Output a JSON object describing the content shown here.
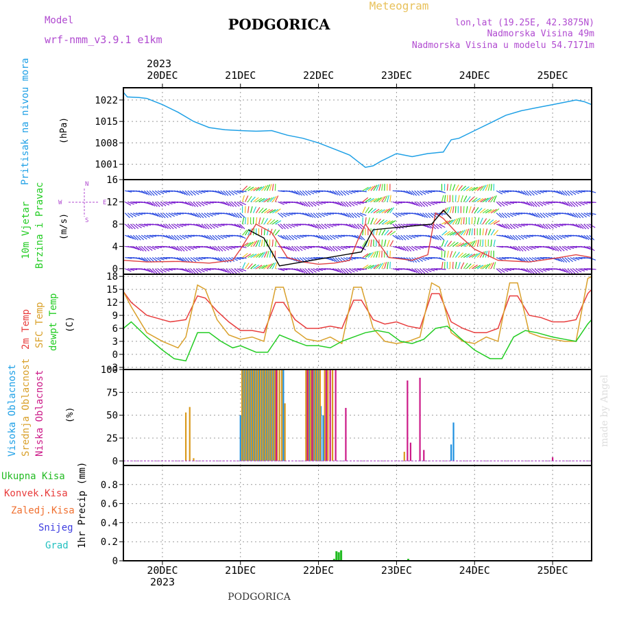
{
  "header": {
    "model_label": "Model",
    "model_name": "wrf-nmm_v3.9.1  e1km",
    "city": "PODGORICA",
    "meteogram": "Meteogram",
    "lonlat": "lon,lat (19.25E, 42.3875N)",
    "elevation": "Nadmorska Visina 49m",
    "model_elevation": "Nadmorska Visina u modelu 54.7171m"
  },
  "footer": {
    "city": "PODGORICA",
    "watermark": "made by Angel"
  },
  "time_axis": {
    "year": "2023",
    "days": [
      "20DEC",
      "21DEC",
      "22DEC",
      "23DEC",
      "24DEC",
      "25DEC"
    ]
  },
  "colors": {
    "pressure": "#1ea0e6",
    "temp2m": "#e83c3c",
    "sfctemp": "#d9a02a",
    "dewpt": "#22cc22",
    "high_cloud": "#1e90e0",
    "mid_cloud": "#d99a1e",
    "low_cloud": "#cc1a88",
    "total_precip": "#22bb22",
    "purple": "#b04ad0",
    "wind_speed_line": "#e04040",
    "gust_line": "#000000"
  },
  "panels": {
    "pressure": {
      "label": "Pritisak na nivou mora",
      "unit": "(hPa)"
    },
    "wind": {
      "label1": "10m Vjetar",
      "label2": "Brzina i Pravac",
      "unit": "(m/s)",
      "compass": [
        "N",
        "W",
        "E",
        "S"
      ]
    },
    "temp": {
      "label1": "2m Temp",
      "label2": "SFC Temp",
      "label3": "dewpt Temp",
      "unit": "(C)"
    },
    "cloud": {
      "label1": "Visoka Oblacnost",
      "label2": "Srednja Oblacnost",
      "label3": "Niska Oblacnost",
      "unit": "(%)"
    },
    "precip": {
      "legend": [
        "Ukupna Kisa",
        "Konvek.Kisa",
        "Zaledj.Kisa",
        "Snijeg",
        "Grad"
      ],
      "unit": "1hr Precip (mm)"
    }
  },
  "chart_data": [
    {
      "type": "line",
      "name": "pressure",
      "x_unit": "days since 20DEC 00UTC",
      "xlim": [
        -0.5,
        5.5
      ],
      "ylim": [
        996,
        1026
      ],
      "yticks": [
        1001,
        1008,
        1015,
        1022
      ],
      "series": [
        {
          "name": "Pritisak na nivou mora",
          "color_key": "pressure",
          "x": [
            -0.5,
            -0.45,
            -0.3,
            -0.2,
            -0.1,
            0.0,
            0.2,
            0.4,
            0.6,
            0.8,
            1.0,
            1.2,
            1.4,
            1.6,
            1.8,
            2.0,
            2.2,
            2.4,
            2.5,
            2.6,
            2.7,
            2.8,
            3.0,
            3.2,
            3.4,
            3.6,
            3.7,
            3.8,
            4.0,
            4.2,
            4.4,
            4.6,
            4.8,
            5.0,
            5.2,
            5.3,
            5.4,
            5.5
          ],
          "values": [
            1024.5,
            1023,
            1022.8,
            1022.5,
            1021.5,
            1020.5,
            1018,
            1015,
            1013,
            1012.3,
            1012,
            1011.8,
            1012,
            1010.5,
            1009.5,
            1008,
            1006,
            1004,
            1002,
            1000,
            1000.5,
            1002,
            1004.5,
            1003.5,
            1004.5,
            1005,
            1009,
            1009.5,
            1012,
            1014.5,
            1017,
            1018.5,
            1019.5,
            1020.5,
            1021.5,
            1022,
            1021.5,
            1020.5
          ]
        }
      ]
    },
    {
      "type": "line",
      "name": "wind",
      "ylim": [
        -1,
        16
      ],
      "yticks": [
        0,
        4,
        8,
        12,
        16
      ],
      "series": [
        {
          "name": "wind speed",
          "color_key": "wind_speed_line",
          "x": [
            -0.5,
            -0.2,
            0.2,
            0.6,
            0.9,
            1.0,
            1.2,
            1.4,
            1.6,
            1.8,
            2.0,
            2.2,
            2.4,
            2.5,
            2.6,
            2.7,
            2.9,
            3.2,
            3.4,
            3.5,
            3.6,
            3.7,
            3.8,
            4.0,
            4.3,
            4.7,
            5.0,
            5.3,
            5.5
          ],
          "values": [
            1.5,
            1.2,
            1.3,
            1.0,
            1.5,
            3.5,
            8.0,
            6.5,
            2.0,
            1.2,
            0.8,
            1.0,
            1.5,
            5.0,
            8.0,
            6.0,
            2.0,
            1.5,
            2.5,
            10.0,
            9.0,
            7.5,
            6.0,
            3.5,
            1.5,
            1.2,
            1.8,
            2.5,
            2.0
          ]
        },
        {
          "name": "gust",
          "color_key": "gust_line",
          "x": [
            1.1,
            1.3,
            1.5,
            2.55,
            2.7,
            3.45,
            3.6,
            3.7
          ],
          "values": [
            7.0,
            5.5,
            0.5,
            3.0,
            7.0,
            8.0,
            10.5,
            9.0
          ]
        }
      ]
    },
    {
      "type": "line",
      "name": "temperature",
      "ylim": [
        -3.5,
        18.5
      ],
      "yticks": [
        -3,
        0,
        3,
        6,
        9,
        12,
        15,
        18
      ],
      "series": [
        {
          "name": "2m Temp",
          "color_key": "temp2m",
          "x": [
            -0.5,
            -0.4,
            -0.2,
            0.0,
            0.1,
            0.3,
            0.45,
            0.55,
            0.7,
            0.85,
            1.0,
            1.15,
            1.3,
            1.45,
            1.55,
            1.7,
            1.85,
            2.0,
            2.15,
            2.3,
            2.45,
            2.55,
            2.7,
            2.85,
            3.0,
            3.15,
            3.3,
            3.45,
            3.55,
            3.7,
            3.85,
            4.0,
            4.15,
            4.3,
            4.45,
            4.55,
            4.7,
            4.85,
            5.0,
            5.15,
            5.3,
            5.45,
            5.5
          ],
          "values": [
            14.5,
            12,
            9,
            8,
            7.5,
            8,
            13.5,
            13,
            10,
            7.5,
            5.5,
            5.5,
            5,
            12,
            12,
            8,
            6,
            6,
            6.5,
            6,
            12.5,
            12.5,
            8,
            7,
            7.5,
            6.5,
            6,
            14,
            14,
            7.5,
            6,
            5,
            5,
            6,
            13.5,
            13.5,
            9,
            8.5,
            7.5,
            7.5,
            8,
            14,
            15
          ]
        },
        {
          "name": "SFC Temp",
          "color_key": "sfctemp",
          "x": [
            -0.5,
            -0.4,
            -0.2,
            0.0,
            0.2,
            0.3,
            0.45,
            0.55,
            0.7,
            0.85,
            1.0,
            1.15,
            1.3,
            1.45,
            1.55,
            1.7,
            1.85,
            2.0,
            2.15,
            2.3,
            2.45,
            2.55,
            2.7,
            2.85,
            3.0,
            3.15,
            3.3,
            3.45,
            3.55,
            3.7,
            3.85,
            4.0,
            4.15,
            4.3,
            4.45,
            4.55,
            4.7,
            4.85,
            5.0,
            5.15,
            5.3,
            5.45,
            5.5
          ],
          "values": [
            14.5,
            11,
            5,
            3,
            1.5,
            4,
            16,
            15,
            8,
            4.5,
            3.5,
            4,
            3,
            15.5,
            15.5,
            5.5,
            3.5,
            3,
            4,
            2.5,
            15.5,
            15.5,
            6,
            3,
            2.5,
            3,
            4,
            16.5,
            15.5,
            5,
            3,
            2.5,
            4,
            3,
            16.5,
            16.5,
            5,
            4,
            3.5,
            3,
            3,
            17.5,
            18
          ]
        },
        {
          "name": "dewpt Temp",
          "color_key": "dewpt",
          "x": [
            -0.5,
            -0.4,
            -0.2,
            0.0,
            0.15,
            0.3,
            0.45,
            0.6,
            0.75,
            0.9,
            1.0,
            1.2,
            1.35,
            1.5,
            1.7,
            1.85,
            2.0,
            2.15,
            2.3,
            2.45,
            2.6,
            2.75,
            2.9,
            3.05,
            3.2,
            3.35,
            3.5,
            3.65,
            3.8,
            4.0,
            4.2,
            4.35,
            4.5,
            4.65,
            4.8,
            5.0,
            5.15,
            5.3,
            5.45,
            5.5
          ],
          "values": [
            6,
            7.5,
            4,
            1,
            -1,
            -1.5,
            5,
            5,
            3,
            1.5,
            2,
            0.5,
            0.5,
            4.5,
            3,
            2,
            2,
            1.5,
            3,
            4,
            5,
            5.5,
            5,
            3,
            2.5,
            3.5,
            6,
            6.5,
            4,
            1,
            -1,
            -1,
            4,
            5.5,
            5,
            4,
            3.5,
            3,
            7,
            8
          ]
        }
      ]
    },
    {
      "type": "bar",
      "name": "cloud",
      "ylim": [
        -5,
        100
      ],
      "yticks": [
        0,
        25,
        50,
        75,
        100
      ],
      "series": [
        {
          "name": "Visoka Oblacnost",
          "color_key": "high_cloud",
          "x": [
            1.0,
            1.03,
            1.06,
            1.09,
            1.12,
            1.15,
            1.18,
            1.21,
            1.24,
            1.27,
            1.3,
            1.33,
            1.36,
            1.39,
            1.42,
            1.45,
            1.5,
            1.55,
            1.85,
            1.88,
            1.91,
            1.94,
            1.97,
            2.0,
            2.03,
            2.06,
            3.7,
            3.73
          ],
          "values": [
            50,
            100,
            100,
            100,
            100,
            100,
            100,
            100,
            100,
            100,
            100,
            100,
            100,
            100,
            100,
            100,
            100,
            100,
            100,
            100,
            100,
            100,
            100,
            100,
            60,
            50,
            18,
            42
          ]
        },
        {
          "name": "Srednja Oblacnost",
          "color_key": "mid_cloud",
          "x": [
            0.3,
            0.35,
            0.4,
            1.02,
            1.05,
            1.08,
            1.11,
            1.14,
            1.17,
            1.2,
            1.23,
            1.26,
            1.29,
            1.32,
            1.35,
            1.38,
            1.41,
            1.44,
            1.47,
            1.5,
            1.53,
            1.57,
            1.84,
            1.87,
            1.9,
            1.93,
            1.96,
            1.99,
            2.02,
            2.08,
            2.12,
            2.18,
            3.1
          ],
          "values": [
            53,
            59,
            3,
            100,
            100,
            100,
            100,
            100,
            100,
            100,
            100,
            100,
            100,
            100,
            100,
            100,
            100,
            100,
            100,
            100,
            100,
            63,
            100,
            100,
            100,
            100,
            100,
            100,
            100,
            100,
            100,
            100,
            10
          ]
        },
        {
          "name": "Niska Oblacnost",
          "color_key": "low_cloud",
          "x": [
            1.46,
            1.86,
            1.92,
            2.1,
            2.15,
            2.22,
            2.35,
            3.14,
            3.18,
            3.3,
            3.35,
            5.0
          ],
          "values": [
            100,
            100,
            100,
            100,
            100,
            100,
            58,
            88,
            20,
            91,
            12,
            4
          ]
        }
      ]
    },
    {
      "type": "bar",
      "name": "precip",
      "ylim": [
        0,
        1.0
      ],
      "yticks": [
        0,
        0.2,
        0.4,
        0.6,
        0.8
      ],
      "series": [
        {
          "name": "Ukupna Kisa",
          "color_key": "total_precip",
          "x": [
            2.2,
            2.23,
            2.26,
            2.29,
            3.15
          ],
          "values": [
            0.02,
            0.1,
            0.09,
            0.11,
            0.02
          ]
        }
      ]
    }
  ]
}
